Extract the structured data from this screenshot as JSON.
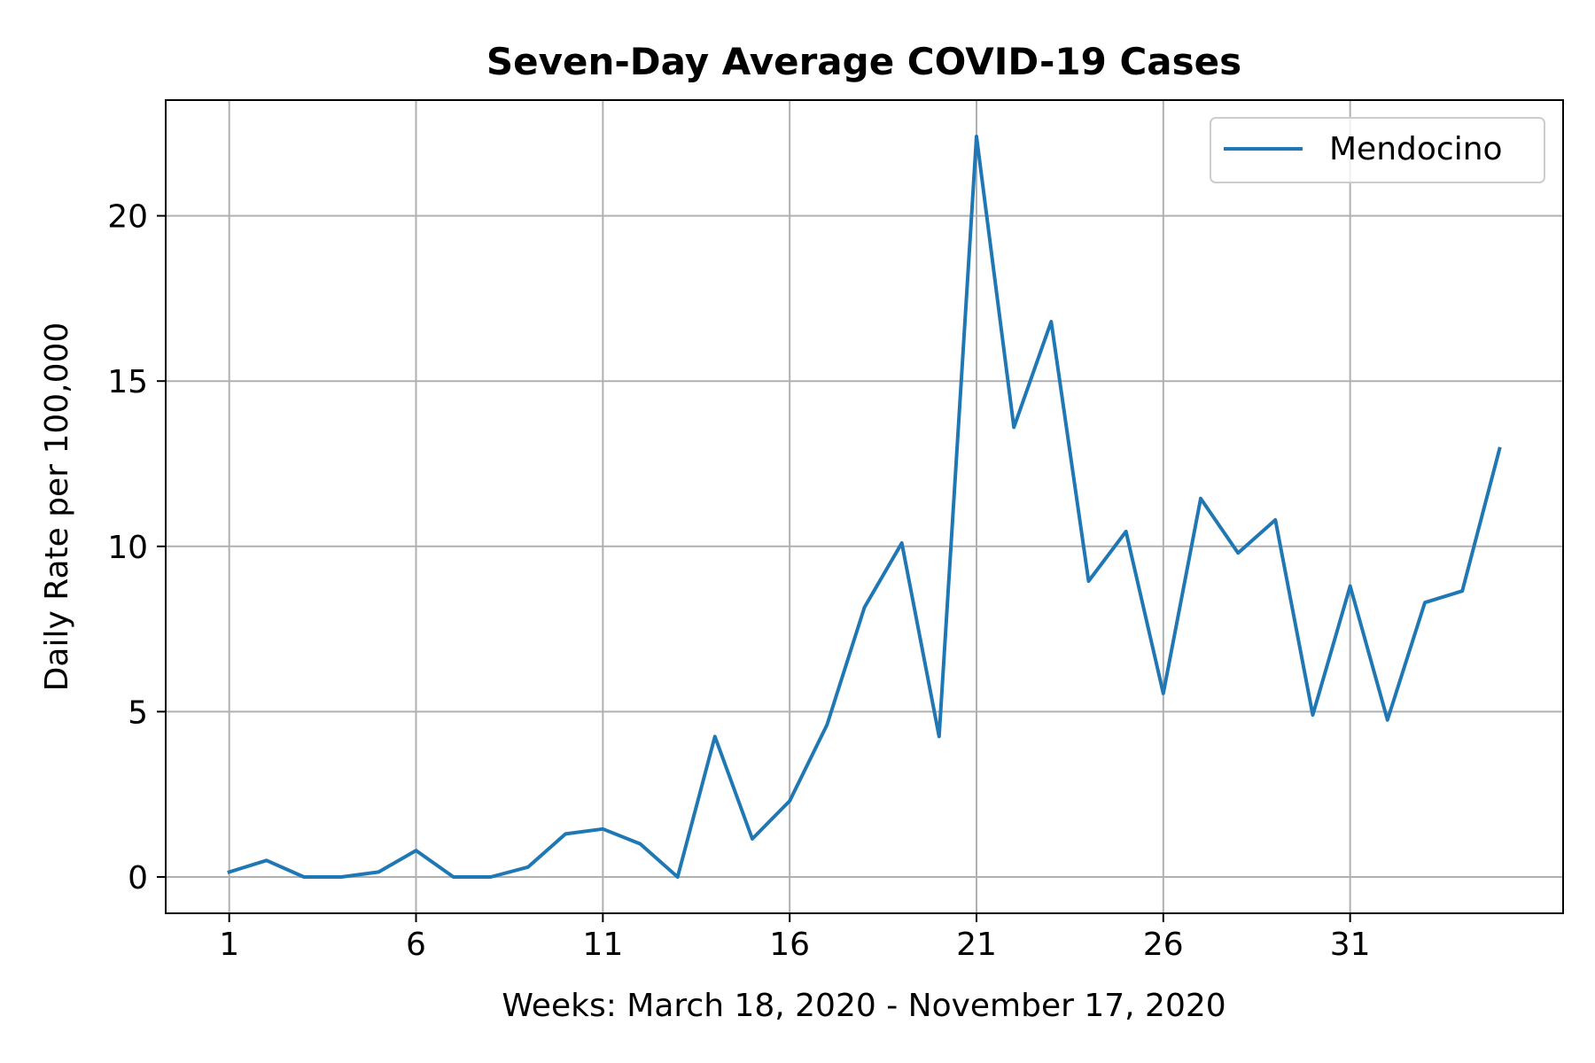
{
  "chart_data": {
    "type": "line",
    "title": "Seven-Day Average COVID-19 Cases",
    "xlabel": "Weeks: March 18, 2020 - November 17, 2020",
    "ylabel": "Daily Rate per 100,000",
    "x_ticks": [
      1,
      6,
      11,
      16,
      21,
      26,
      31
    ],
    "y_ticks": [
      0,
      5,
      10,
      15,
      20
    ],
    "xlim": [
      -0.7,
      36.7
    ],
    "ylim": [
      -1.1,
      23.5
    ],
    "grid": true,
    "legend_position": "top-right",
    "x": [
      1,
      2,
      3,
      4,
      5,
      6,
      7,
      8,
      9,
      10,
      11,
      12,
      13,
      14,
      15,
      16,
      17,
      18,
      19,
      20,
      21,
      22,
      23,
      24,
      25,
      26,
      27,
      28,
      29,
      30,
      31,
      32,
      33,
      34,
      35
    ],
    "series": [
      {
        "name": "Mendocino",
        "color": "#1f77b4",
        "values": [
          0.15,
          0.5,
          0.0,
          0.0,
          0.15,
          0.8,
          0.0,
          0.0,
          0.3,
          1.3,
          1.45,
          1.0,
          0.0,
          4.25,
          1.15,
          2.3,
          4.6,
          8.15,
          10.1,
          4.25,
          22.4,
          13.6,
          16.8,
          8.95,
          10.45,
          5.55,
          11.45,
          9.8,
          10.8,
          4.9,
          8.8,
          4.75,
          8.3,
          8.65,
          12.95
        ]
      }
    ]
  }
}
